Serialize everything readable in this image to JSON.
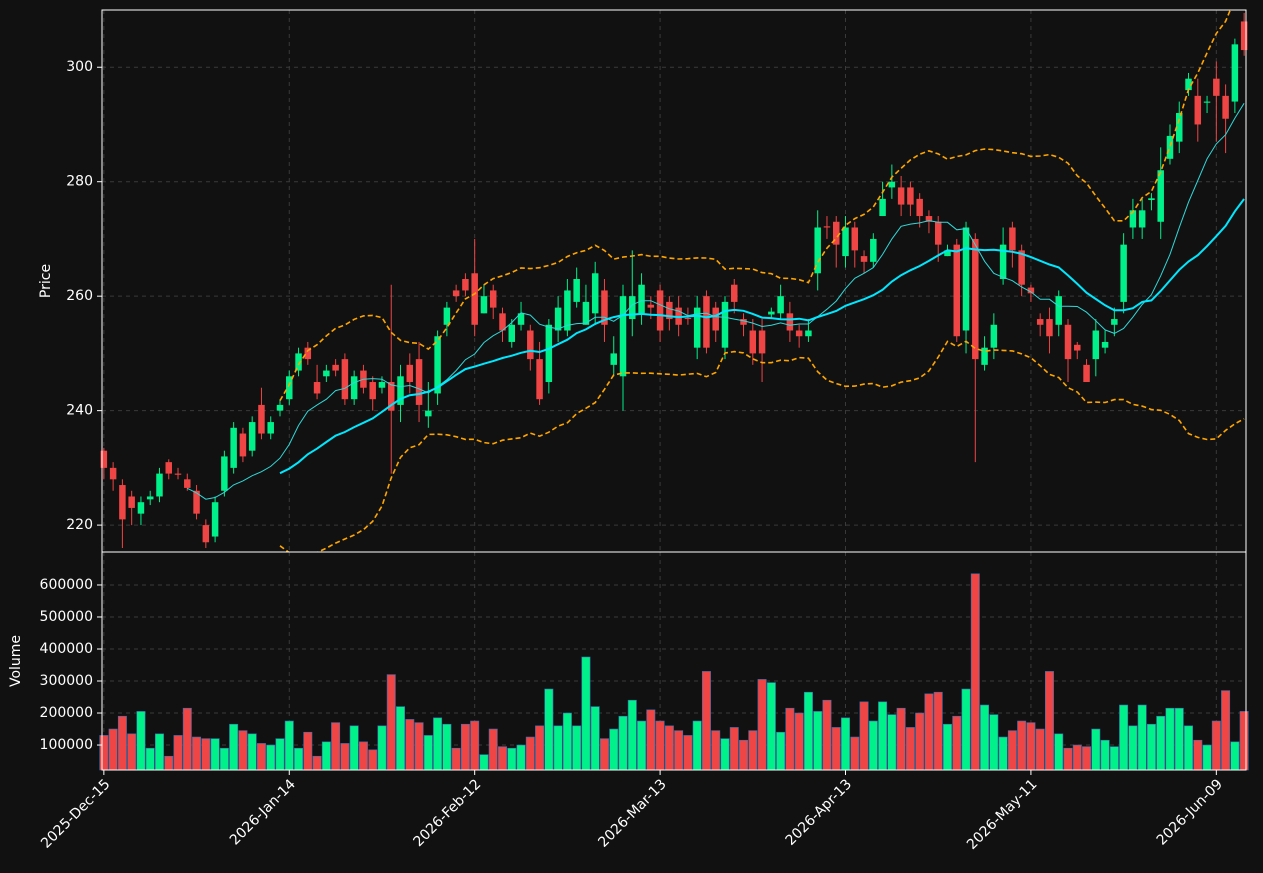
{
  "chart_data": {
    "type": "candlestick",
    "ylabel": "Price",
    "y2label": "Volume",
    "xlim": [
      -0.2,
      123.2
    ],
    "xticks": [
      {
        "value": 0,
        "label": "2025-Dec-15"
      },
      {
        "value": 20,
        "label": "2026-Jan-14"
      },
      {
        "value": 40,
        "label": "2026-Feb-12"
      },
      {
        "value": 60,
        "label": "2026-Mar-13"
      },
      {
        "value": 80,
        "label": "2026-Apr-13"
      },
      {
        "value": 100,
        "label": "2026-May-11"
      },
      {
        "value": 120,
        "label": "2026-Jun-09"
      }
    ],
    "ylim": [
      215.3,
      310
    ],
    "yticks": [
      220,
      240,
      260,
      280,
      300
    ],
    "y2lim": [
      22000,
      703000
    ],
    "y2ticks": [
      100000,
      200000,
      300000,
      400000,
      500000,
      600000
    ],
    "grid": true,
    "up_color": "#00f08a",
    "down_color": "#f04545",
    "background": "#111111",
    "indicators": {
      "ma": [
        {
          "period": 10,
          "color": "#30d8d8",
          "width": 1
        },
        {
          "period": 20,
          "color": "#00e8ff",
          "width": 2
        }
      ],
      "bollinger": {
        "period": 20,
        "k": 2,
        "color": "#ffa500"
      }
    },
    "open": [
      233,
      230,
      227,
      225,
      222,
      224.5,
      225,
      231,
      229,
      228,
      226,
      220,
      218,
      226,
      230,
      236,
      233,
      241,
      236,
      240,
      242,
      247,
      251,
      245,
      246,
      248,
      249,
      242,
      247,
      245,
      244,
      245,
      241,
      248,
      249,
      239,
      243,
      255,
      261,
      263,
      264,
      257,
      261,
      257,
      252,
      255,
      254,
      249,
      245,
      254,
      254,
      259,
      255,
      257,
      261,
      248,
      246,
      256,
      257,
      258.5,
      261,
      259,
      258,
      256.2,
      251,
      260,
      258,
      251,
      262,
      256,
      254,
      254,
      256.8,
      257,
      257,
      254,
      253,
      264,
      272.2,
      273,
      267,
      272,
      267,
      266,
      274,
      279,
      279,
      279,
      277,
      274,
      273,
      267,
      269,
      254,
      270,
      248,
      251,
      263,
      272,
      268,
      261.5,
      256,
      256,
      255,
      255,
      251.5,
      248,
      249,
      251,
      255,
      259,
      272,
      272,
      276.8,
      273,
      284,
      287,
      296,
      295,
      293.8,
      298,
      295,
      294,
      308
    ],
    "high": [
      233.5,
      231,
      228,
      226,
      225,
      226,
      230,
      231.5,
      230,
      229,
      227,
      221,
      225,
      233,
      238,
      237,
      239,
      244,
      239,
      242,
      247,
      251,
      252,
      248,
      248,
      249,
      250,
      247,
      248,
      246,
      246,
      262,
      248,
      250,
      252,
      245,
      254,
      259,
      262,
      264,
      270,
      262,
      262,
      258,
      256,
      259,
      255,
      252,
      256,
      260,
      263,
      265,
      262,
      266,
      263,
      253,
      262,
      268,
      264,
      260,
      262,
      260,
      260,
      258,
      260,
      261,
      259,
      260,
      263,
      257,
      256,
      256,
      258,
      262,
      259,
      255,
      256,
      275,
      274,
      274,
      274,
      273,
      268,
      271,
      280,
      283,
      281,
      280,
      278,
      275,
      274,
      269,
      270,
      273,
      271,
      253,
      257,
      272,
      273,
      269,
      262,
      257,
      258,
      261,
      256,
      252,
      249,
      256,
      254,
      258,
      271,
      277,
      277,
      278,
      286,
      290,
      294,
      299,
      298,
      295,
      301,
      297,
      305,
      309.5
    ],
    "low": [
      228,
      226,
      216,
      220,
      220,
      223.5,
      224,
      228,
      228,
      226,
      221,
      216,
      217,
      225,
      229,
      231,
      232,
      235,
      235,
      239,
      241,
      246,
      248,
      242,
      245,
      246,
      241,
      241,
      243,
      240,
      243,
      229,
      238,
      243,
      238,
      237,
      241,
      253,
      259,
      260,
      253,
      257,
      256,
      252,
      251,
      254,
      247,
      241,
      243,
      252,
      253,
      258,
      255,
      255,
      252,
      246,
      240,
      253,
      255,
      256,
      252,
      254,
      253,
      255,
      249,
      250,
      252,
      249,
      257,
      253,
      248,
      245,
      256,
      256,
      252,
      251,
      252,
      261,
      270,
      265,
      265,
      265,
      264,
      265,
      274,
      277,
      274,
      274,
      272,
      271,
      266,
      267,
      252,
      250,
      231,
      247,
      249,
      262,
      265,
      260,
      259,
      253,
      250,
      253,
      245,
      249,
      245,
      246,
      250,
      253,
      257,
      270,
      270,
      275,
      270,
      283,
      285,
      295,
      287,
      292,
      287,
      285,
      292,
      302
    ],
    "close": [
      230,
      228,
      221,
      223,
      224,
      225,
      229,
      229,
      228.8,
      226.5,
      222,
      217,
      224,
      232,
      237,
      232,
      238,
      236,
      238,
      241,
      246,
      250,
      249,
      243,
      247,
      247,
      242,
      246,
      244,
      242,
      245,
      240,
      246,
      245,
      241,
      240,
      253,
      258,
      260,
      261,
      255,
      260,
      258,
      254,
      255,
      257,
      249,
      242,
      255,
      258,
      261,
      263,
      259,
      264,
      255,
      250,
      260,
      260,
      262,
      258,
      254,
      256,
      255,
      256,
      258,
      251,
      254,
      259,
      259,
      255,
      250,
      250,
      257.3,
      260,
      254,
      253,
      254,
      272,
      272,
      269,
      272,
      268,
      266,
      270,
      277,
      280,
      276,
      276,
      274,
      273,
      269,
      268,
      253,
      272,
      249,
      251,
      255,
      269,
      268,
      262,
      260.5,
      255,
      253,
      260,
      249,
      250.5,
      245,
      254,
      252,
      256,
      269,
      275,
      275,
      277.1,
      282,
      288,
      292,
      298,
      290,
      294,
      295,
      291,
      304,
      303
    ],
    "volume": [
      130000,
      150000,
      190000,
      135000,
      205000,
      90000,
      135000,
      65000,
      130000,
      215000,
      125000,
      120000,
      120000,
      90000,
      165000,
      145000,
      135000,
      105000,
      100000,
      120000,
      175000,
      90000,
      140000,
      65000,
      110000,
      170000,
      105000,
      160000,
      110000,
      85000,
      160000,
      320000,
      220000,
      180000,
      170000,
      130000,
      185000,
      165000,
      90000,
      165000,
      175000,
      70000,
      150000,
      95000,
      90000,
      100000,
      125000,
      160000,
      275000,
      160000,
      200000,
      160000,
      375000,
      220000,
      120000,
      150000,
      190000,
      240000,
      175000,
      210000,
      175000,
      160000,
      145000,
      130000,
      175000,
      330000,
      145000,
      120000,
      155000,
      115000,
      145000,
      305000,
      295000,
      140000,
      215000,
      200000,
      265000,
      205000,
      240000,
      155000,
      185000,
      125000,
      235000,
      175000,
      235000,
      195000,
      215000,
      155000,
      200000,
      260000,
      265000,
      165000,
      190000,
      275000,
      635000,
      225000,
      195000,
      125000,
      145000,
      175000,
      170000,
      150000,
      330000,
      135000,
      90000,
      100000,
      95000,
      150000,
      115000,
      95000,
      225000,
      160000,
      225000,
      165000,
      190000,
      215000,
      215000,
      160000,
      115000,
      100000,
      175000,
      270000,
      110000,
      205000
    ]
  }
}
